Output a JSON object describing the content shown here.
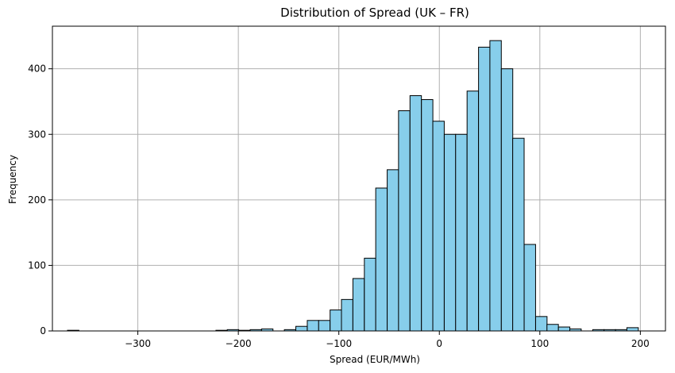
{
  "chart_data": {
    "type": "bar",
    "title": "Distribution of Spread (UK – FR)",
    "xlabel": "Spread (EUR/MWh)",
    "ylabel": "Frequency",
    "xlim": [
      -385,
      225
    ],
    "ylim": [
      0,
      465
    ],
    "xticks": [
      -300,
      -200,
      -100,
      0,
      100,
      200
    ],
    "xtick_labels": [
      "−300",
      "−200",
      "−100",
      "0",
      "100",
      "200"
    ],
    "yticks": [
      0,
      100,
      200,
      300,
      400
    ],
    "yticks_labels": [
      "0",
      "100",
      "200",
      "300",
      "400"
    ],
    "grid": true,
    "bar_color": "#87ceeb",
    "edge_color": "#000000",
    "bin_width": 11.36,
    "bin_starts": [
      -370.0,
      -358.6,
      -347.3,
      -335.9,
      -324.6,
      -313.2,
      -301.8,
      -290.5,
      -279.1,
      -267.8,
      -256.4,
      -245.0,
      -233.7,
      -222.3,
      -211.0,
      -199.6,
      -188.2,
      -176.9,
      -165.5,
      -154.2,
      -142.8,
      -131.4,
      -120.1,
      -108.7,
      -97.4,
      -86.0,
      -74.6,
      -63.3,
      -51.9,
      -40.6,
      -29.2,
      -17.8,
      -6.5,
      4.9,
      16.2,
      27.6,
      39.0,
      50.3,
      61.7,
      73.0,
      84.4,
      95.8,
      107.1,
      118.5,
      129.8,
      141.2,
      152.6,
      163.9,
      175.3,
      186.6
    ],
    "values": [
      1,
      0,
      0,
      0,
      0,
      0,
      0,
      0,
      0,
      0,
      0,
      0,
      0,
      1,
      2,
      1,
      2,
      3,
      0,
      2,
      7,
      16,
      16,
      32,
      48,
      80,
      111,
      218,
      246,
      336,
      359,
      353,
      320,
      300,
      300,
      366,
      433,
      443,
      400,
      294,
      132,
      22,
      10,
      6,
      3,
      0,
      2,
      2,
      2,
      5
    ]
  }
}
